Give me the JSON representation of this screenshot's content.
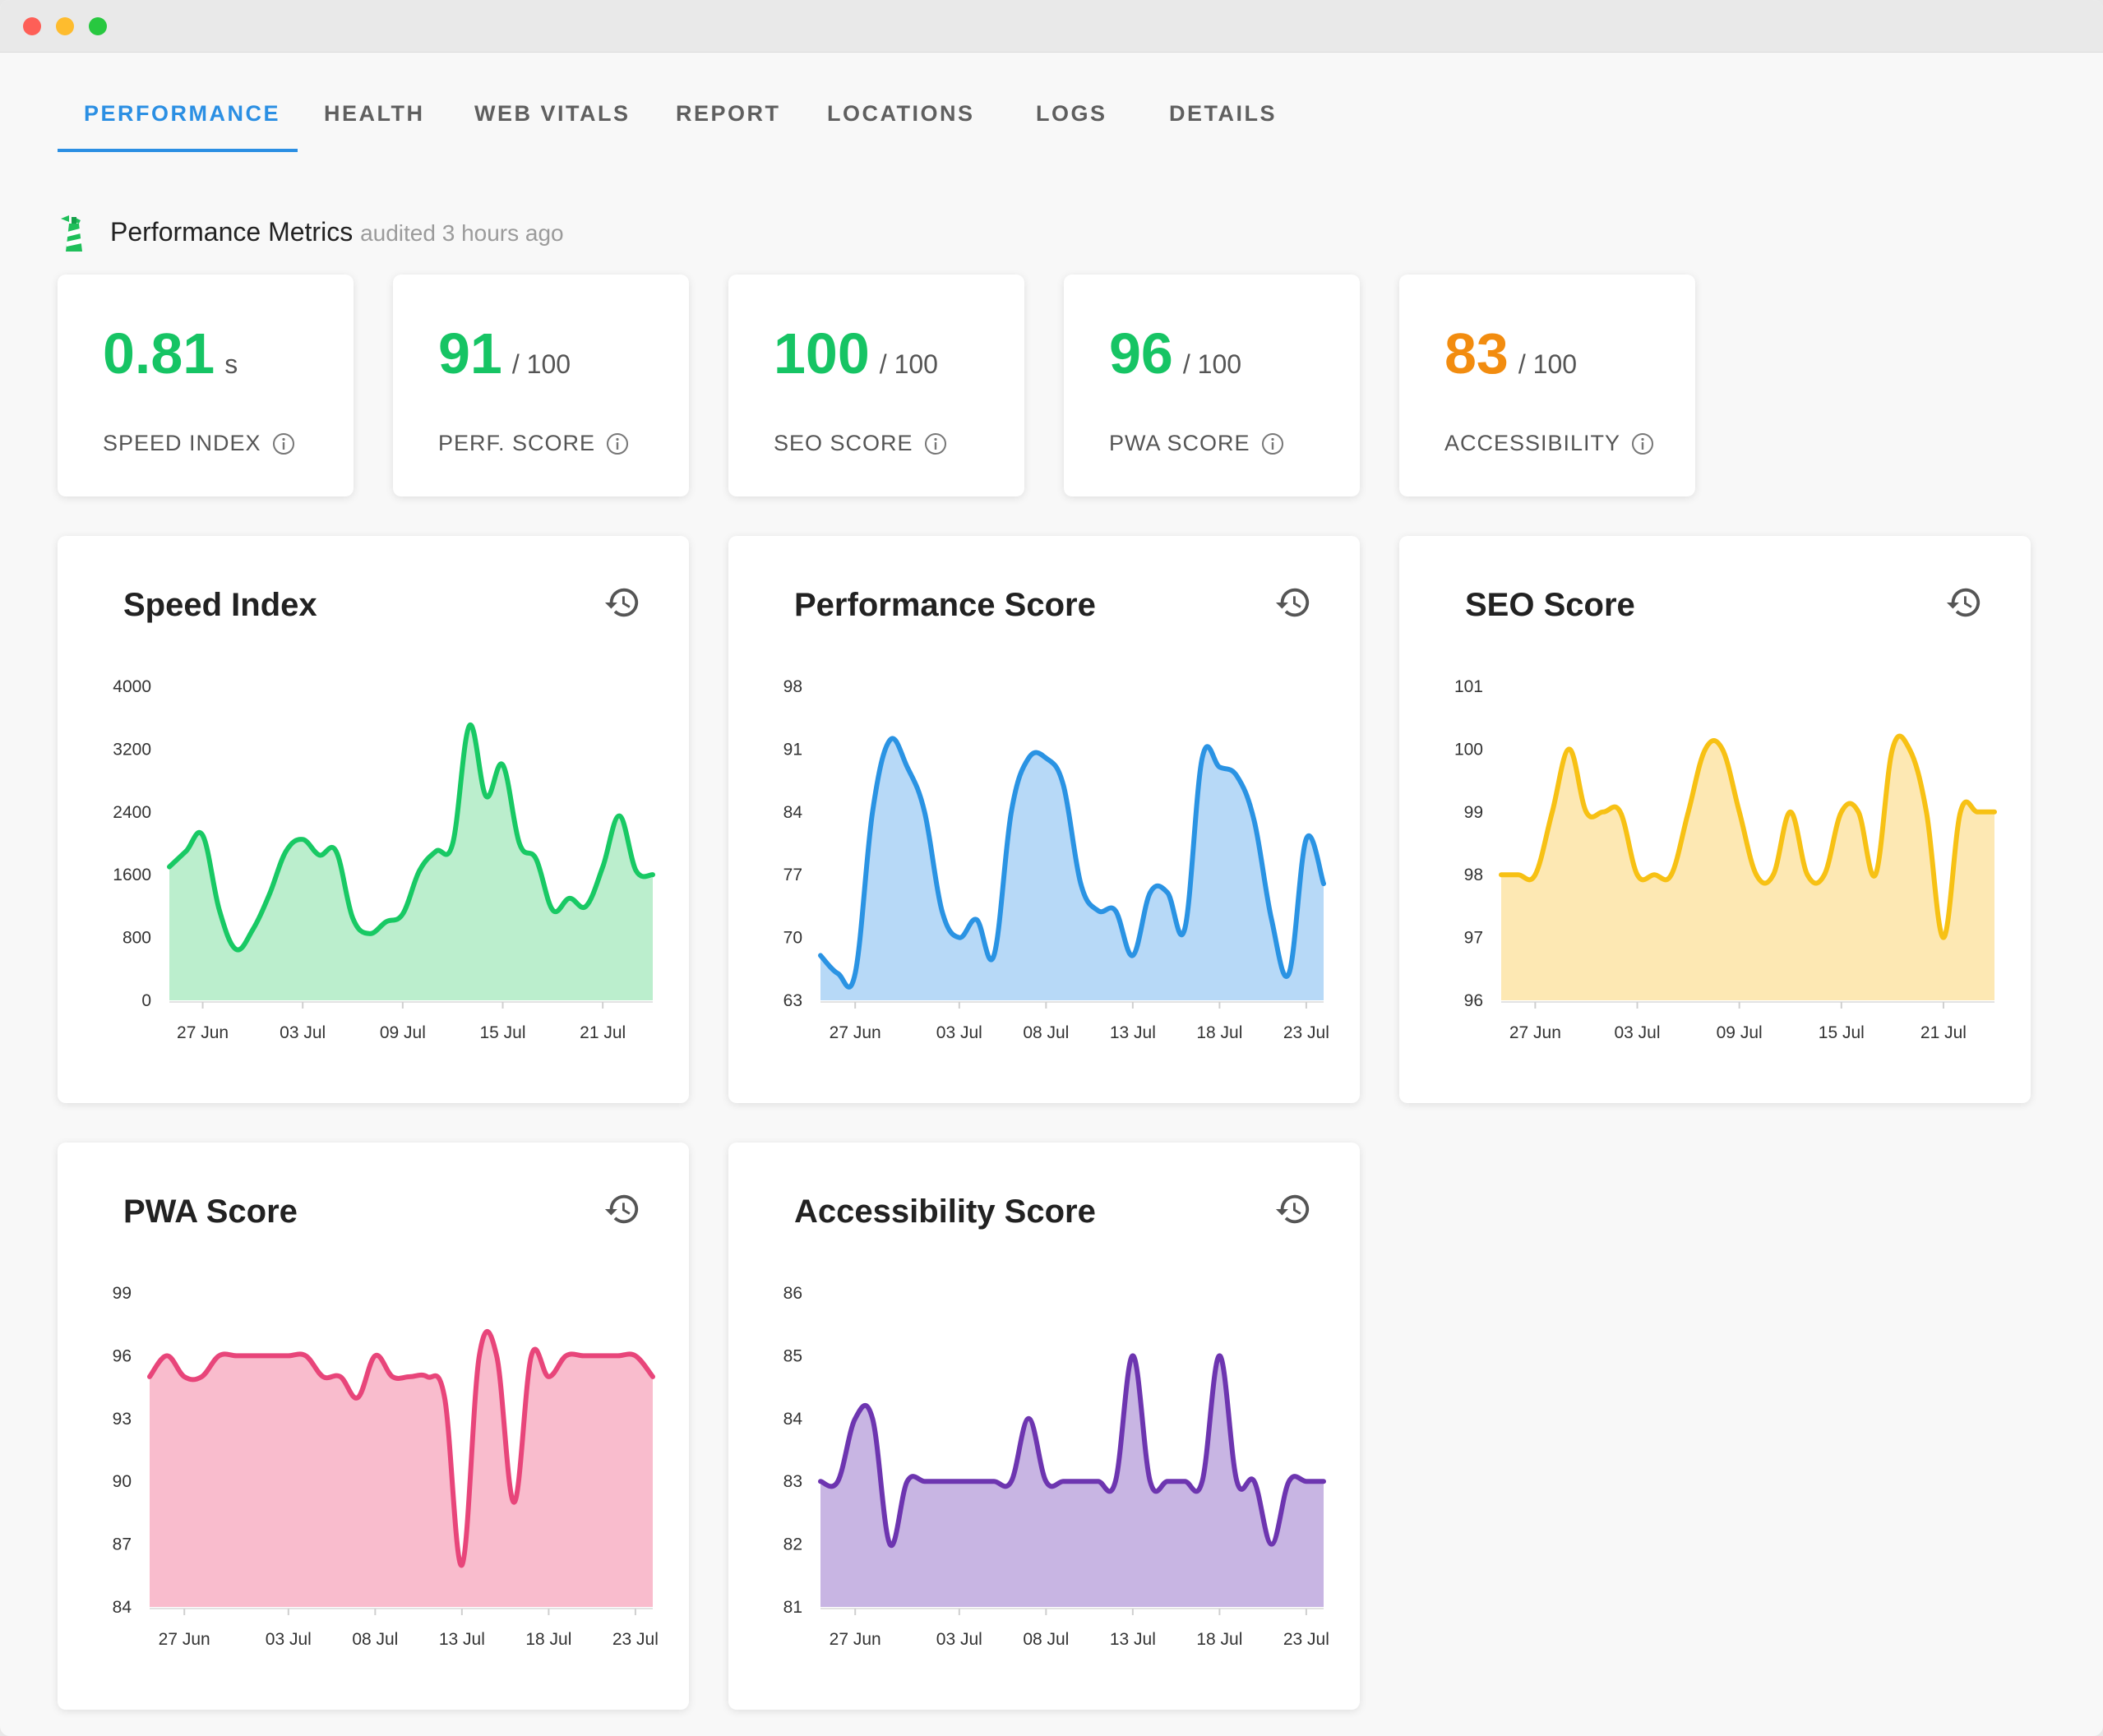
{
  "tabs": [
    "PERFORMANCE",
    "HEALTH",
    "WEB VITALS",
    "REPORT",
    "LOCATIONS",
    "LOGS",
    "DETAILS"
  ],
  "active_tab": "PERFORMANCE",
  "section": {
    "title": "Performance Metrics",
    "subtitle": "audited 3 hours ago",
    "icon": "lighthouse-icon"
  },
  "metrics": [
    {
      "value": "0.81",
      "unit": "s",
      "label": "SPEED INDEX",
      "color": "#16c464"
    },
    {
      "value": "91",
      "unit": "/ 100",
      "label": "PERF. SCORE",
      "color": "#16c464"
    },
    {
      "value": "100",
      "unit": "/ 100",
      "label": "SEO SCORE",
      "color": "#16c464"
    },
    {
      "value": "96",
      "unit": "/ 100",
      "label": "PWA SCORE",
      "color": "#16c464"
    },
    {
      "value": "83",
      "unit": "/ 100",
      "label": "ACCESSIBILITY",
      "color": "#f28c0f"
    }
  ],
  "colors": {
    "accent": "#2b8fe3",
    "good": "#16c464",
    "average": "#f28c0f"
  },
  "chart_data": [
    {
      "type": "area",
      "title": "Speed Index",
      "color": "#18c964",
      "fill": "#bbeecd",
      "ylim": [
        0,
        4000
      ],
      "yticks": [
        "0",
        "800",
        "1600",
        "2400",
        "3200",
        "4000"
      ],
      "xticks": [
        "27 Jun",
        "03 Jul",
        "09 Jul",
        "15 Jul",
        "21 Jul"
      ],
      "x": [
        "25 Jun",
        "26 Jun",
        "27 Jun",
        "28 Jun",
        "29 Jun",
        "30 Jun",
        "01 Jul",
        "02 Jul",
        "03 Jul",
        "04 Jul",
        "05 Jul",
        "06 Jul",
        "07 Jul",
        "08 Jul",
        "09 Jul",
        "10 Jul",
        "11 Jul",
        "12 Jul",
        "13 Jul",
        "14 Jul",
        "15 Jul",
        "16 Jul",
        "17 Jul",
        "18 Jul",
        "19 Jul",
        "20 Jul",
        "21 Jul",
        "22 Jul",
        "23 Jul",
        "24 Jul"
      ],
      "values": [
        1700,
        1900,
        2100,
        1150,
        650,
        900,
        1350,
        1900,
        2050,
        1850,
        1900,
        1050,
        850,
        1000,
        1100,
        1650,
        1900,
        2000,
        3500,
        2600,
        3000,
        2000,
        1800,
        1150,
        1300,
        1200,
        1700,
        2350,
        1650,
        1600
      ]
    },
    {
      "type": "area",
      "title": "Performance Score",
      "color": "#2a93e3",
      "fill": "#b7d9f7",
      "ylim": [
        63,
        98
      ],
      "yticks": [
        "63",
        "70",
        "77",
        "84",
        "91",
        "98"
      ],
      "xticks": [
        "27 Jun",
        "03 Jul",
        "08 Jul",
        "13 Jul",
        "18 Jul",
        "23 Jul"
      ],
      "x": [
        "25 Jun",
        "26 Jun",
        "27 Jun",
        "28 Jun",
        "29 Jun",
        "30 Jun",
        "01 Jul",
        "02 Jul",
        "03 Jul",
        "04 Jul",
        "05 Jul",
        "06 Jul",
        "07 Jul",
        "08 Jul",
        "09 Jul",
        "10 Jul",
        "11 Jul",
        "12 Jul",
        "13 Jul",
        "14 Jul",
        "15 Jul",
        "16 Jul",
        "17 Jul",
        "18 Jul",
        "19 Jul",
        "20 Jul",
        "21 Jul",
        "22 Jul",
        "23 Jul",
        "24 Jul"
      ],
      "values": [
        68,
        66,
        66,
        84,
        92,
        89,
        84,
        73,
        70,
        72,
        68,
        84,
        90,
        90,
        87,
        76,
        73,
        73,
        68,
        75,
        75,
        71,
        90,
        89,
        88,
        83,
        72,
        66,
        81,
        76
      ]
    },
    {
      "type": "area",
      "title": "SEO Score",
      "color": "#f7c114",
      "fill": "#fde8b3",
      "ylim": [
        96,
        101
      ],
      "yticks": [
        "96",
        "97",
        "98",
        "99",
        "100",
        "101"
      ],
      "xticks": [
        "27 Jun",
        "03 Jul",
        "09 Jul",
        "15 Jul",
        "21 Jul"
      ],
      "x": [
        "25 Jun",
        "26 Jun",
        "27 Jun",
        "28 Jun",
        "29 Jun",
        "30 Jun",
        "01 Jul",
        "02 Jul",
        "03 Jul",
        "04 Jul",
        "05 Jul",
        "06 Jul",
        "07 Jul",
        "08 Jul",
        "09 Jul",
        "10 Jul",
        "11 Jul",
        "12 Jul",
        "13 Jul",
        "14 Jul",
        "15 Jul",
        "16 Jul",
        "17 Jul",
        "18 Jul",
        "19 Jul",
        "20 Jul",
        "21 Jul",
        "22 Jul",
        "23 Jul",
        "24 Jul"
      ],
      "values": [
        98,
        98,
        98,
        99,
        100,
        99,
        99,
        99,
        98,
        98,
        98,
        99,
        100,
        100,
        99,
        98,
        98,
        99,
        98,
        98,
        99,
        99,
        98,
        100,
        100,
        99,
        97,
        99,
        99,
        99
      ]
    },
    {
      "type": "area",
      "title": "PWA Score",
      "color": "#e8457a",
      "fill": "#f9bccd",
      "ylim": [
        84,
        99
      ],
      "yticks": [
        "84",
        "87",
        "90",
        "93",
        "96",
        "99"
      ],
      "xticks": [
        "27 Jun",
        "03 Jul",
        "08 Jul",
        "13 Jul",
        "18 Jul",
        "23 Jul"
      ],
      "x": [
        "25 Jun",
        "26 Jun",
        "27 Jun",
        "28 Jun",
        "29 Jun",
        "30 Jun",
        "01 Jul",
        "02 Jul",
        "03 Jul",
        "04 Jul",
        "05 Jul",
        "06 Jul",
        "07 Jul",
        "08 Jul",
        "09 Jul",
        "10 Jul",
        "11 Jul",
        "12 Jul",
        "13 Jul",
        "14 Jul",
        "15 Jul",
        "16 Jul",
        "17 Jul",
        "18 Jul",
        "19 Jul",
        "20 Jul",
        "21 Jul",
        "22 Jul",
        "23 Jul",
        "24 Jul"
      ],
      "values": [
        95,
        96,
        95,
        95,
        96,
        96,
        96,
        96,
        96,
        96,
        95,
        95,
        94,
        96,
        95,
        95,
        95,
        94,
        86,
        96,
        96,
        89,
        96,
        95,
        96,
        96,
        96,
        96,
        96,
        95
      ]
    },
    {
      "type": "area",
      "title": "Accessibility Score",
      "color": "#6d35b0",
      "fill": "#c8b5e3",
      "ylim": [
        81,
        86
      ],
      "yticks": [
        "81",
        "82",
        "83",
        "84",
        "85",
        "86"
      ],
      "xticks": [
        "27 Jun",
        "03 Jul",
        "08 Jul",
        "13 Jul",
        "18 Jul",
        "23 Jul"
      ],
      "x": [
        "25 Jun",
        "26 Jun",
        "27 Jun",
        "28 Jun",
        "29 Jun",
        "30 Jun",
        "01 Jul",
        "02 Jul",
        "03 Jul",
        "04 Jul",
        "05 Jul",
        "06 Jul",
        "07 Jul",
        "08 Jul",
        "09 Jul",
        "10 Jul",
        "11 Jul",
        "12 Jul",
        "13 Jul",
        "14 Jul",
        "15 Jul",
        "16 Jul",
        "17 Jul",
        "18 Jul",
        "19 Jul",
        "20 Jul",
        "21 Jul",
        "22 Jul",
        "23 Jul",
        "24 Jul"
      ],
      "values": [
        83,
        83,
        84,
        84,
        82,
        83,
        83,
        83,
        83,
        83,
        83,
        83,
        84,
        83,
        83,
        83,
        83,
        83,
        85,
        83,
        83,
        83,
        83,
        85,
        83,
        83,
        82,
        83,
        83,
        83
      ]
    }
  ]
}
